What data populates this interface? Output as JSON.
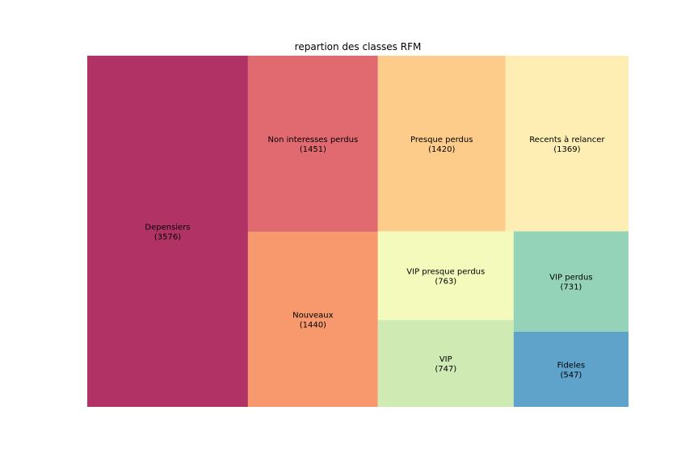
{
  "chart_data": {
    "type": "treemap",
    "title": "repartion des classes RFM",
    "tiles": [
      {
        "label": "Depensiers",
        "value": 3576,
        "value_text": "(3576)",
        "color": "#b13365"
      },
      {
        "label": "Non interesses perdus",
        "value": 1451,
        "value_text": "(1451)",
        "color": "#e06a70"
      },
      {
        "label": "Nouveaux",
        "value": 1440,
        "value_text": "(1440)",
        "color": "#f7986d"
      },
      {
        "label": "Presque perdus",
        "value": 1420,
        "value_text": "(1420)",
        "color": "#fdcb8a"
      },
      {
        "label": "Recents à relancer",
        "value": 1369,
        "value_text": "(1369)",
        "color": "#feeeb3"
      },
      {
        "label": "VIP presque perdus",
        "value": 763,
        "value_text": "(763)",
        "color": "#f3fabb"
      },
      {
        "label": "VIP",
        "value": 747,
        "value_text": "(747)",
        "color": "#cfeab3"
      },
      {
        "label": "VIP perdus",
        "value": 731,
        "value_text": "(731)",
        "color": "#94d3b7"
      },
      {
        "label": "Fideles",
        "value": 547,
        "value_text": "(547)",
        "color": "#5fa2ca"
      }
    ]
  }
}
